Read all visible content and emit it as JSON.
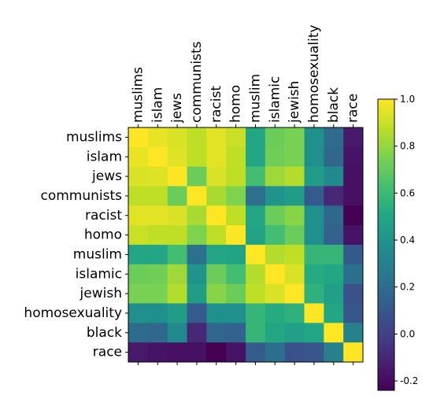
{
  "chart_data": {
    "type": "heatmap",
    "title": "",
    "xlabel": "",
    "ylabel": "",
    "labels": [
      "muslims",
      "islam",
      "jews",
      "communists",
      "racist",
      "homo",
      "muslim",
      "islamic",
      "jewish",
      "homosexuality",
      "black",
      "race"
    ],
    "values": [
      [
        1.0,
        0.96,
        0.93,
        0.88,
        0.95,
        0.9,
        0.5,
        0.72,
        0.75,
        0.38,
        0.2,
        -0.15
      ],
      [
        0.96,
        1.0,
        0.94,
        0.88,
        0.95,
        0.88,
        0.5,
        0.73,
        0.75,
        0.38,
        0.18,
        -0.17
      ],
      [
        0.93,
        0.94,
        1.0,
        0.72,
        0.93,
        0.88,
        0.62,
        0.82,
        0.86,
        0.45,
        0.35,
        -0.18
      ],
      [
        0.88,
        0.88,
        0.72,
        1.0,
        0.84,
        0.76,
        0.22,
        0.4,
        0.45,
        0.12,
        -0.1,
        -0.18
      ],
      [
        0.95,
        0.95,
        0.93,
        0.84,
        1.0,
        0.88,
        0.5,
        0.72,
        0.78,
        0.38,
        0.18,
        -0.24
      ],
      [
        0.9,
        0.88,
        0.88,
        0.76,
        0.88,
        1.0,
        0.48,
        0.62,
        0.72,
        0.38,
        0.15,
        -0.17
      ],
      [
        0.5,
        0.5,
        0.62,
        0.22,
        0.5,
        0.48,
        1.0,
        0.86,
        0.88,
        0.58,
        0.58,
        0.12
      ],
      [
        0.72,
        0.73,
        0.82,
        0.4,
        0.72,
        0.62,
        0.86,
        1.0,
        0.93,
        0.52,
        0.5,
        0.22
      ],
      [
        0.75,
        0.75,
        0.86,
        0.45,
        0.78,
        0.72,
        0.88,
        0.93,
        1.0,
        0.55,
        0.46,
        0.08
      ],
      [
        0.38,
        0.38,
        0.45,
        0.12,
        0.38,
        0.38,
        0.58,
        0.52,
        0.55,
        1.0,
        0.5,
        0.1
      ],
      [
        0.2,
        0.18,
        0.35,
        -0.1,
        0.18,
        0.15,
        0.58,
        0.5,
        0.46,
        0.5,
        1.0,
        0.3
      ],
      [
        -0.15,
        -0.17,
        -0.18,
        -0.18,
        -0.24,
        -0.17,
        0.12,
        0.22,
        0.08,
        0.1,
        0.3,
        1.0
      ]
    ],
    "colormap": "viridis",
    "vmin": -0.24,
    "vmax": 1.0,
    "colorbar_ticks": [
      "-0.2",
      "0.0",
      "0.2",
      "0.4",
      "0.6",
      "0.8",
      "1.0"
    ],
    "grid": false
  }
}
